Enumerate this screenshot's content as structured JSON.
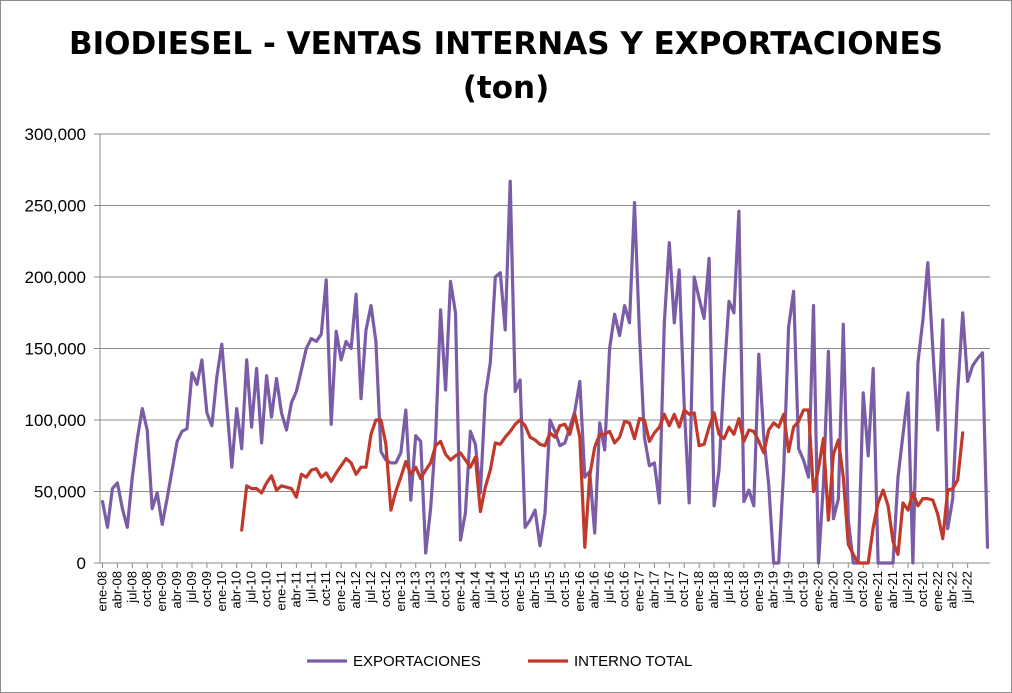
{
  "chart_data": {
    "type": "line",
    "title_line1": "BIODIESEL - VENTAS INTERNAS Y EXPORTACIONES",
    "title_line2": "(ton)",
    "ylim": [
      0,
      300000
    ],
    "yticks": [
      "0",
      "50,000",
      "100,000",
      "150,000",
      "200,000",
      "250,000",
      "300,000"
    ],
    "grid": true,
    "legend_position": "bottom",
    "start_month": "ene-08",
    "month_labels": [
      "ene-08",
      "abr-08",
      "jul-08",
      "oct-08",
      "ene-09",
      "abr-09",
      "jul-09",
      "oct-09",
      "ene-10",
      "abr-10",
      "jul-10",
      "oct-10",
      "ene-11",
      "abr-11",
      "jul-11",
      "oct-11",
      "ene-12",
      "abr-12",
      "jul-12",
      "oct-12",
      "ene-13",
      "abr-13",
      "jul-13",
      "oct-13",
      "ene-14",
      "abr-14",
      "jul-14",
      "oct-14",
      "ene-15",
      "abr-15",
      "jul-15",
      "oct-15",
      "ene-16",
      "abr-16",
      "jul-16",
      "oct-16",
      "ene-17",
      "abr-17",
      "jul-17",
      "oct-17",
      "ene-18",
      "abr-18",
      "jul-18",
      "oct-18",
      "ene-19",
      "abr-19",
      "jul-19",
      "oct-19",
      "ene-20",
      "abr-20",
      "jul-20",
      "oct-20",
      "ene-21",
      "abr-21",
      "jul-21",
      "oct-21",
      "ene-22",
      "abr-22",
      "jul-22"
    ],
    "series": [
      {
        "name": "EXPORTACIONES",
        "color": "#7b5ca6",
        "values": [
          43000,
          25000,
          52000,
          56000,
          38000,
          25000,
          60000,
          87000,
          108000,
          93000,
          38000,
          49000,
          27000,
          45000,
          65000,
          85000,
          92000,
          94000,
          133000,
          125000,
          142000,
          105000,
          96000,
          130000,
          153000,
          110000,
          67000,
          108000,
          80000,
          142000,
          95000,
          136000,
          84000,
          131000,
          102000,
          129000,
          105000,
          93000,
          112000,
          120000,
          135000,
          150000,
          157000,
          155000,
          160000,
          198000,
          97000,
          162000,
          142000,
          155000,
          150000,
          188000,
          115000,
          163000,
          180000,
          155000,
          78000,
          72000,
          70000,
          70000,
          77000,
          107000,
          44000,
          89000,
          85000,
          7000,
          38000,
          88000,
          177000,
          121000,
          197000,
          175000,
          16000,
          35000,
          92000,
          83000,
          49000,
          117000,
          140000,
          200000,
          203000,
          163000,
          267000,
          120000,
          128000,
          25000,
          30000,
          37000,
          12000,
          35000,
          100000,
          92000,
          82000,
          84000,
          95000,
          106000,
          127000,
          60000,
          64000,
          21000,
          98000,
          79000,
          150000,
          174000,
          159000,
          180000,
          168000,
          252000,
          160000,
          88000,
          68000,
          70000,
          42000,
          168000,
          224000,
          168000,
          205000,
          110000,
          42000,
          200000,
          185000,
          171000,
          213000,
          40000,
          65000,
          130000,
          183000,
          175000,
          246000,
          43000,
          51000,
          40000,
          146000,
          88000,
          55000,
          0,
          0,
          65000,
          165000,
          190000,
          80000,
          72000,
          60000,
          180000,
          0,
          55000,
          148000,
          31000,
          45000,
          167000,
          30000,
          0,
          0,
          119000,
          75000,
          136000,
          0,
          0,
          0,
          0,
          60000,
          90000,
          119000,
          0,
          140000,
          170000,
          210000,
          150000,
          93000,
          170000,
          24000,
          45000,
          120000,
          175000,
          127000,
          138000,
          143000,
          147000,
          11000
        ]
      },
      {
        "name": "INTERNO TOTAL",
        "color": "#c0392b",
        "start_index": 28,
        "values": [
          23000,
          54000,
          52000,
          52000,
          49000,
          56000,
          61000,
          51000,
          54000,
          53000,
          52000,
          46000,
          62000,
          60000,
          65000,
          66000,
          60000,
          63000,
          57000,
          63000,
          68000,
          73000,
          70000,
          62000,
          67000,
          67000,
          90000,
          100000,
          100000,
          83000,
          37000,
          50000,
          60000,
          71000,
          62000,
          67000,
          59000,
          65000,
          70000,
          82000,
          85000,
          76000,
          72000,
          75000,
          77000,
          72000,
          67000,
          74000,
          36000,
          53000,
          65000,
          84000,
          83000,
          88000,
          92000,
          97000,
          100000,
          96000,
          88000,
          86000,
          83000,
          82000,
          91000,
          88000,
          96000,
          97000,
          90000,
          104000,
          88000,
          11000,
          61000,
          81000,
          90000,
          90000,
          92000,
          84000,
          88000,
          99000,
          98000,
          87000,
          101000,
          100000,
          85000,
          91000,
          95000,
          104000,
          96000,
          104000,
          95000,
          107000,
          104000,
          105000,
          82000,
          83000,
          95000,
          105000,
          90000,
          87000,
          95000,
          90000,
          101000,
          85000,
          93000,
          92000,
          85000,
          77000,
          93000,
          98000,
          95000,
          104000,
          78000,
          95000,
          99000,
          107000,
          107000,
          50000,
          66000,
          87000,
          30000,
          76000,
          86000,
          60000,
          13000,
          6000,
          0,
          0,
          0,
          25000,
          42000,
          51000,
          40000,
          15000,
          6000,
          42000,
          37000,
          49000,
          40000,
          45000,
          45000,
          44000,
          34000,
          17000,
          51000,
          52000,
          58000,
          91000
        ]
      }
    ]
  }
}
